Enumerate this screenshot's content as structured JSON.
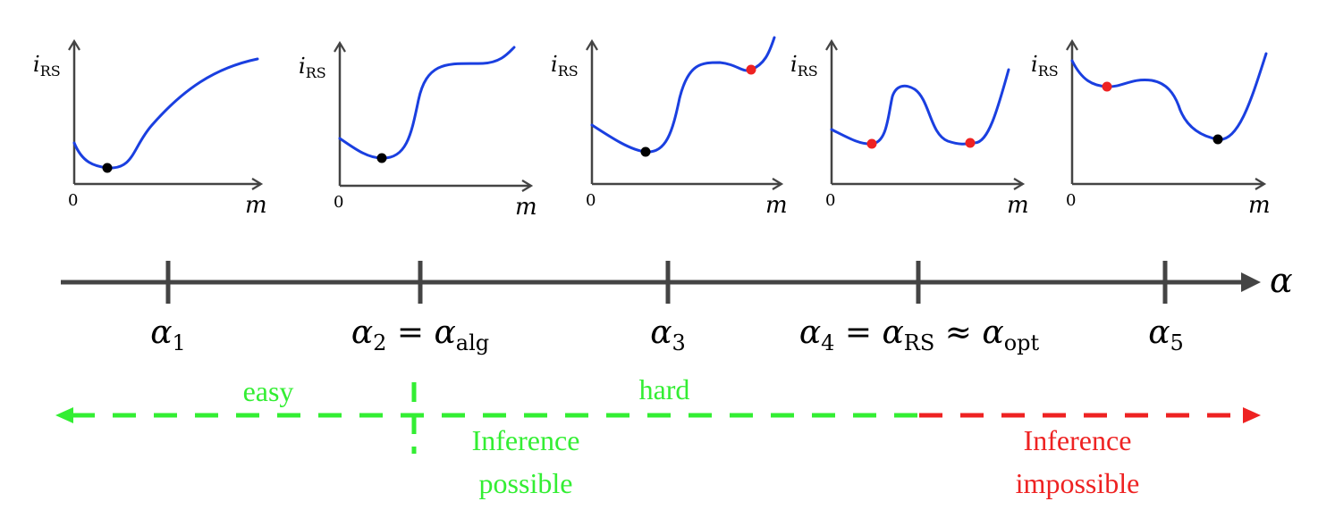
{
  "colors": {
    "axis": "#444444",
    "curve": "#1a3fe0",
    "min_point": "#000000",
    "metastable_point": "#ee2222",
    "green": "#33ee33",
    "red": "#ee2222"
  },
  "panels": [
    {
      "ylabel_sym": "i",
      "ylabel_sub": "RS",
      "xlabel": "m",
      "origin": "0",
      "shape": "single-minimum",
      "points": [
        {
          "role": "global-minimum",
          "color_key": "min_point"
        }
      ]
    },
    {
      "ylabel_sym": "i",
      "ylabel_sub": "RS",
      "xlabel": "m",
      "origin": "0",
      "shape": "minimum-with-inflection",
      "points": [
        {
          "role": "global-minimum",
          "color_key": "min_point"
        }
      ]
    },
    {
      "ylabel_sym": "i",
      "ylabel_sub": "RS",
      "xlabel": "m",
      "origin": "0",
      "shape": "minimum-plus-metastable",
      "points": [
        {
          "role": "global-minimum",
          "color_key": "min_point"
        },
        {
          "role": "local-minimum",
          "color_key": "metastable_point"
        }
      ]
    },
    {
      "ylabel_sym": "i",
      "ylabel_sub": "RS",
      "xlabel": "m",
      "origin": "0",
      "shape": "two-equal-minima",
      "points": [
        {
          "role": "local-minimum",
          "color_key": "metastable_point"
        },
        {
          "role": "local-minimum",
          "color_key": "metastable_point"
        }
      ]
    },
    {
      "ylabel_sym": "i",
      "ylabel_sub": "RS",
      "xlabel": "m",
      "origin": "0",
      "shape": "minimum-at-large-m",
      "points": [
        {
          "role": "local-minimum",
          "color_key": "metastable_point"
        },
        {
          "role": "global-minimum",
          "color_key": "min_point"
        }
      ]
    }
  ],
  "axis": {
    "label": "α",
    "ticks": [
      {
        "main": "α",
        "sub": "1",
        "rest": ""
      },
      {
        "main": "α",
        "sub": "2",
        "rest": " = α",
        "rest_sub": "alg"
      },
      {
        "main": "α",
        "sub": "3",
        "rest": ""
      },
      {
        "main": "α",
        "sub": "4",
        "rest": " = α",
        "rest_sub": "RS",
        "rest2": " ≈ α",
        "rest2_sub": "opt"
      },
      {
        "main": "α",
        "sub": "5",
        "rest": ""
      }
    ]
  },
  "regions": {
    "easy": "easy",
    "hard": "hard",
    "possible_line1": "Inference",
    "possible_line2": "possible",
    "impossible_line1": "Inference",
    "impossible_line2": "impossible"
  }
}
